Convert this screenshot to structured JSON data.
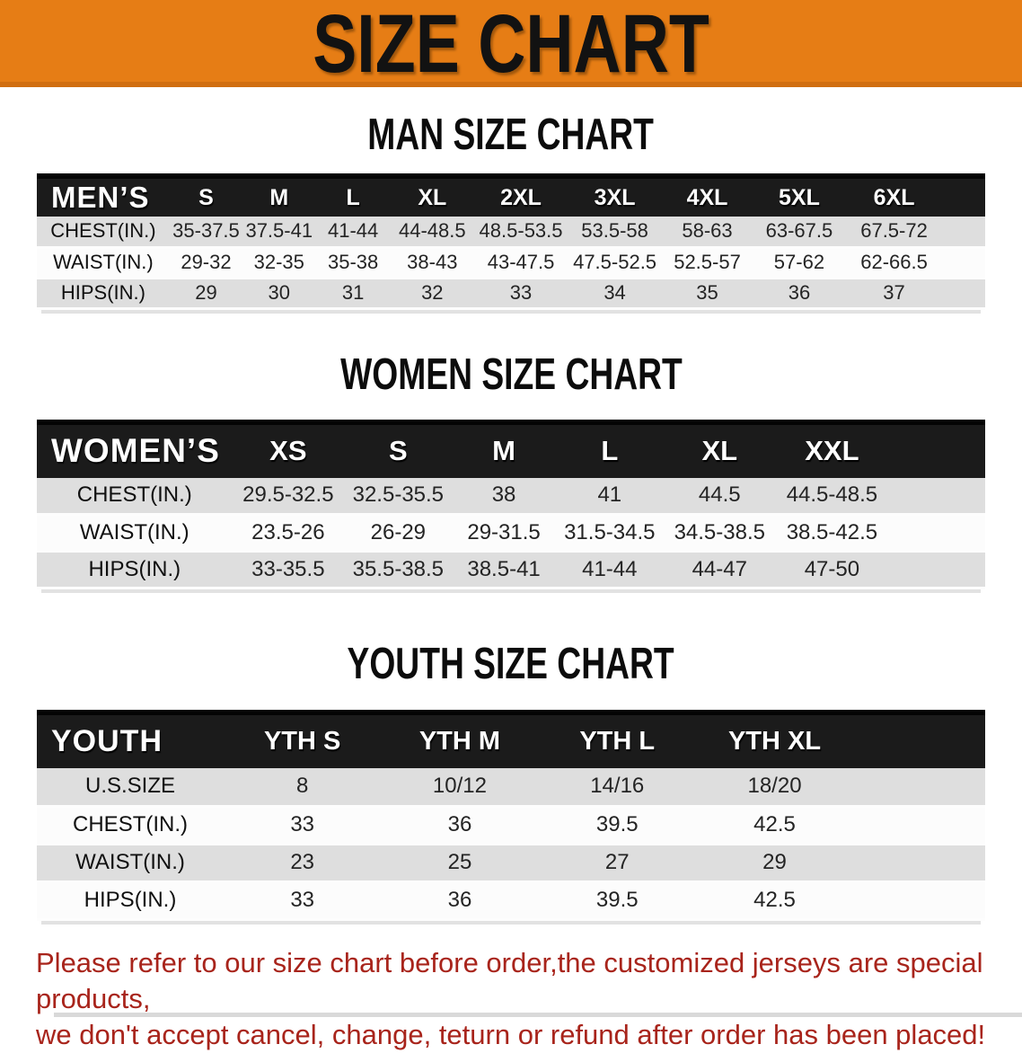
{
  "banner": {
    "title": "SIZE CHART",
    "bg_color": "#E67D15",
    "text_color": "#121212"
  },
  "sections": [
    {
      "heading": "MAN SIZE CHART",
      "table": {
        "group_label": "MEN’S",
        "columns": [
          "S",
          "M",
          "L",
          "XL",
          "2XL",
          "3XL",
          "4XL",
          "5XL",
          "6XL"
        ],
        "rows": [
          {
            "label": "CHEST(IN.)",
            "values": [
              "35-37.5",
              "37.5-41",
              "41-44",
              "44-48.5",
              "48.5-53.5",
              "53.5-58",
              "58-63",
              "63-67.5",
              "67.5-72"
            ]
          },
          {
            "label": "WAIST(IN.)",
            "values": [
              "29-32",
              "32-35",
              "35-38",
              "38-43",
              "43-47.5",
              "47.5-52.5",
              "52.5-57",
              "57-62",
              "62-66.5"
            ]
          },
          {
            "label": "HIPS(IN.)",
            "values": [
              "29",
              "30",
              "31",
              "32",
              "33",
              "34",
              "35",
              "36",
              "37"
            ]
          }
        ]
      }
    },
    {
      "heading": "WOMEN SIZE CHART",
      "table": {
        "group_label": "WOMEN’S",
        "columns": [
          "XS",
          "S",
          "M",
          "L",
          "XL",
          "XXL"
        ],
        "rows": [
          {
            "label": "CHEST(IN.)",
            "values": [
              "29.5-32.5",
              "32.5-35.5",
              "38",
              "41",
              "44.5",
              "44.5-48.5"
            ]
          },
          {
            "label": "WAIST(IN.)",
            "values": [
              "23.5-26",
              "26-29",
              "29-31.5",
              "31.5-34.5",
              "34.5-38.5",
              "38.5-42.5"
            ]
          },
          {
            "label": "HIPS(IN.)",
            "values": [
              "33-35.5",
              "35.5-38.5",
              "38.5-41",
              "41-44",
              "44-47",
              "47-50"
            ]
          }
        ]
      }
    },
    {
      "heading": "YOUTH SIZE CHART",
      "table": {
        "group_label": "YOUTH",
        "columns": [
          "YTH S",
          "YTH M",
          "YTH L",
          "YTH XL"
        ],
        "rows": [
          {
            "label": "U.S.SIZE",
            "values": [
              "8",
              "10/12",
              "14/16",
              "18/20"
            ]
          },
          {
            "label": "CHEST(IN.)",
            "values": [
              "33",
              "36",
              "39.5",
              "42.5"
            ]
          },
          {
            "label": "WAIST(IN.)",
            "values": [
              "23",
              "25",
              "27",
              "29"
            ]
          },
          {
            "label": "HIPS(IN.)",
            "values": [
              "33",
              "36",
              "39.5",
              "42.5"
            ]
          }
        ]
      }
    }
  ],
  "footer": {
    "lines": [
      "Please refer to our size chart before order,the customized jerseys are special products,",
      "we don't accept cancel, change, teturn or refund after order has been placed!"
    ],
    "text_color": "#A8241B"
  },
  "colors": {
    "header_bar_bg": "#1B1B1B",
    "row_alt_bg": "#DEDEDE",
    "row_bg": "#FCFCFC",
    "banner_orange": "#E67D15",
    "notice_red": "#A8241B"
  }
}
